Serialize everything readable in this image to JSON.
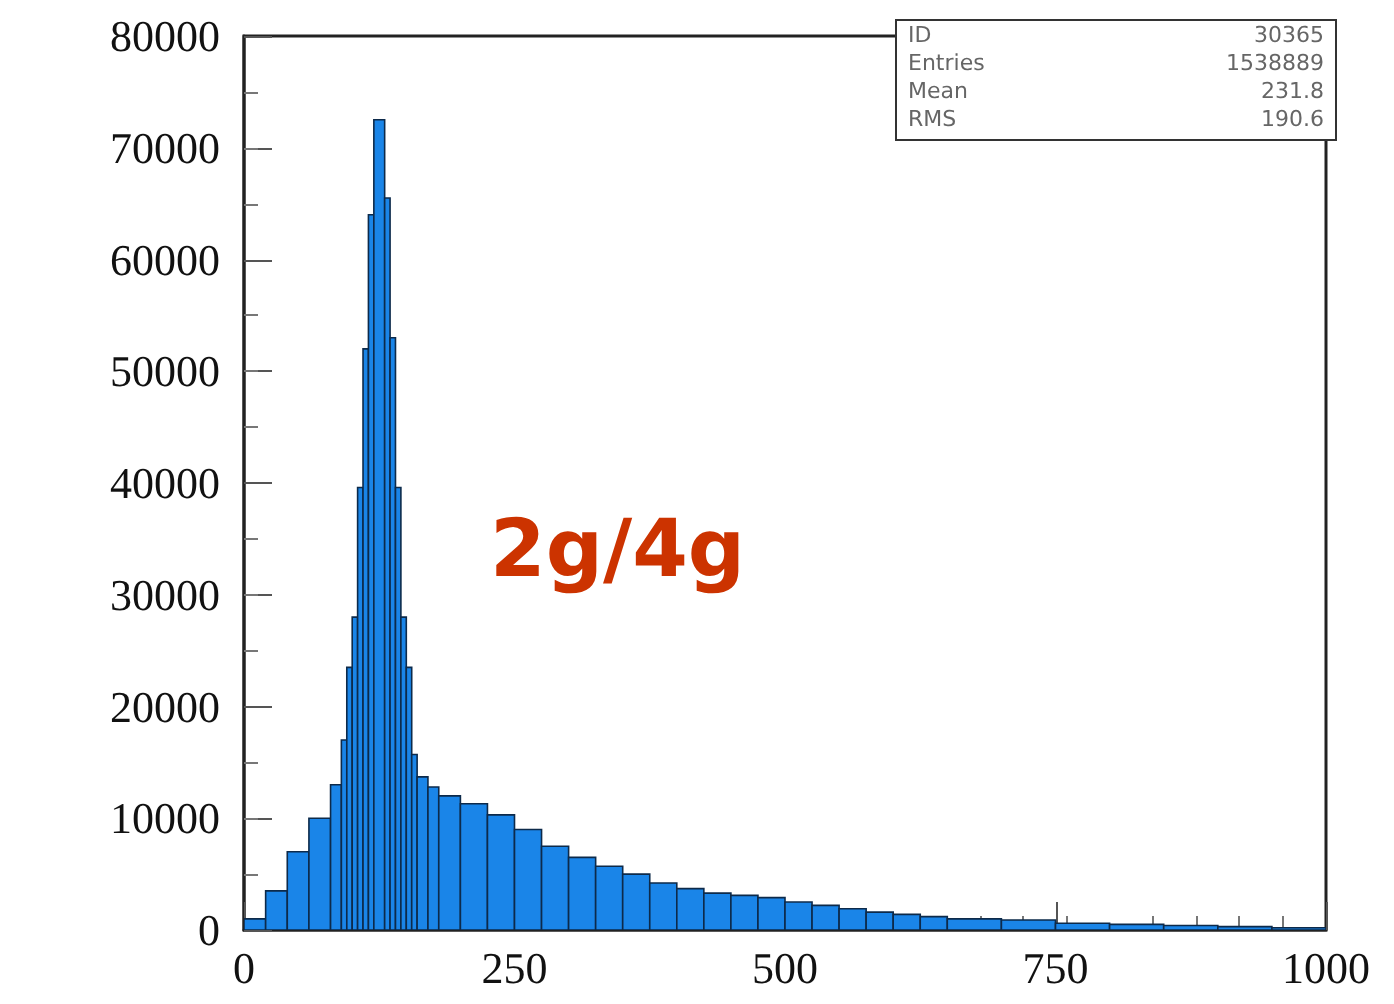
{
  "chart_data": {
    "type": "histogram",
    "title": "2g/4g",
    "bins": [
      0,
      20,
      40,
      60,
      80,
      90,
      95,
      100,
      105,
      110,
      115,
      120,
      130,
      135,
      140,
      145,
      150,
      155,
      160,
      170,
      180,
      200,
      225,
      250,
      275,
      300,
      325,
      350,
      375,
      400,
      425,
      450,
      475,
      500,
      525,
      550,
      575,
      600,
      625,
      650,
      700,
      750,
      800,
      850,
      900,
      950,
      1000
    ],
    "values": [
      1000,
      3500,
      7000,
      10000,
      13000,
      17000,
      23500,
      28000,
      39600,
      52000,
      64000,
      72500,
      65500,
      53000,
      39600,
      28000,
      23500,
      15700,
      13700,
      12800,
      12000,
      11300,
      10300,
      9000,
      7500,
      6500,
      5700,
      5000,
      4200,
      3700,
      3300,
      3100,
      2900,
      2500,
      2200,
      1900,
      1600,
      1400,
      1200,
      1000,
      900,
      600,
      500,
      400,
      300,
      200
    ],
    "color": "#1a85e8",
    "xlim": [
      0,
      1000
    ],
    "xticks": [
      0,
      250,
      500,
      750,
      1000
    ],
    "ylim": [
      0,
      80000
    ],
    "yticks": [
      0,
      10000,
      20000,
      30000,
      40000,
      50000,
      60000,
      70000,
      80000
    ],
    "annotations": [
      "ID",
      "30365",
      "Entries",
      "1538889",
      "Mean",
      "231.8",
      "RMS",
      "190.6"
    ],
    "grid": false
  }
}
